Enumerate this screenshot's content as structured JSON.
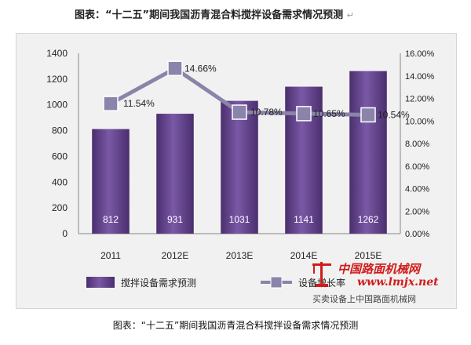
{
  "page": {
    "top_title": "图表：“十二五”期间我国沥青混合料搅拌设备需求情况预测",
    "top_title_mark": "↵",
    "bottom_caption": "图表：“十二五”期间我国沥青混合料搅拌设备需求情况预测"
  },
  "watermark": {
    "main": "中国路面机械网",
    "url": "www.lmjx.net",
    "sub": "买卖设备上中国路面机械网",
    "logo": "crane-logo"
  },
  "colors": {
    "bar": "#5b3c84",
    "bar_light": "#8a6ab6",
    "line": "#8a84aa",
    "marker": "#8a84aa",
    "background": "#f1f1f1",
    "axis_text": "#222222",
    "bar_label_text": "#ffffff",
    "watermark": "#d11b1b"
  },
  "chart_data": {
    "type": "bar",
    "categories": [
      "2011",
      "2012E",
      "2013E",
      "2014E",
      "2015E"
    ],
    "series": [
      {
        "name": "搅拌设备需求预测",
        "type": "bar",
        "axis": "left",
        "values": [
          812,
          931,
          1031,
          1141,
          1262
        ],
        "labels": [
          "812",
          "931",
          "1031",
          "1141",
          "1262"
        ]
      },
      {
        "name": "设备增长率",
        "type": "line",
        "axis": "right",
        "values": [
          11.54,
          14.66,
          10.78,
          10.65,
          10.54
        ],
        "labels": [
          "11.54%",
          "14.66%",
          "10.78%",
          "10.65%",
          "10.54%"
        ]
      }
    ],
    "y_left": {
      "ylim": [
        0,
        1400
      ],
      "ticks": [
        0,
        200,
        400,
        600,
        800,
        1000,
        1200,
        1400
      ],
      "tick_labels": [
        "0",
        "200",
        "400",
        "600",
        "800",
        "1000",
        "1200",
        "1400"
      ]
    },
    "y_right": {
      "ylim": [
        0,
        16
      ],
      "ticks": [
        0,
        2,
        4,
        6,
        8,
        10,
        12,
        14,
        16
      ],
      "tick_labels": [
        "0.00%",
        "2.00%",
        "4.00%",
        "6.00%",
        "8.00%",
        "10.00%",
        "12.00%",
        "14.00%",
        "16.00%"
      ]
    },
    "legend": {
      "placement": "bottom",
      "entries": [
        "搅拌设备需求预测",
        "设备增长率"
      ]
    },
    "grid": false
  }
}
